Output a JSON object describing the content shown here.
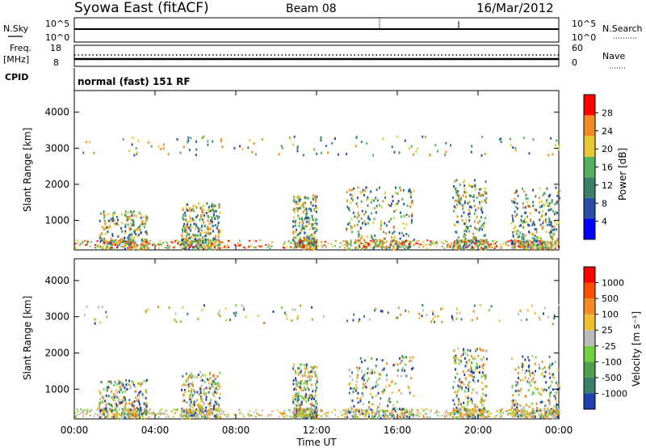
{
  "header": {
    "station": "Syowa East (fitACF)",
    "beam": "Beam 08",
    "date": "16/Mar/2012"
  },
  "top_panels": {
    "nsky_label": "N.Sky",
    "nsky_ticks": [
      "10^5",
      "10^0"
    ],
    "nsearch_label": "N.Search",
    "nsearch_ticks": [
      "10^5",
      "10^0"
    ],
    "freq_label": "Freq.",
    "freq_unit": "[MHz]",
    "freq_ticks": [
      "18",
      "8"
    ],
    "nave_label": "Nave",
    "nave_ticks": [
      "60",
      "0"
    ],
    "cpid_label": "CPID",
    "cpid_value": "normal (fast) 151 RF"
  },
  "chart_data": [
    {
      "type": "heatmap",
      "panel": "power",
      "ylabel": "Slant Range [km]",
      "ylim": [
        180,
        4600
      ],
      "yticks": [
        "4000",
        "3000",
        "2000",
        "1000"
      ],
      "xlabel": "Time UT",
      "xticks": [
        "00:00",
        "04:00",
        "08:00",
        "12:00",
        "16:00",
        "20:00",
        "00:00"
      ],
      "colorbar_label": "Power [dB]",
      "colorbar_ticks": [
        "28",
        "24",
        "20",
        "16",
        "12",
        "8",
        "4"
      ],
      "colors": [
        "#0000ff",
        "#2b4fa8",
        "#3a7f6a",
        "#55b060",
        "#e8c830",
        "#f08c20",
        "#ff0000"
      ]
    },
    {
      "type": "heatmap",
      "panel": "velocity",
      "ylabel": "Slant Range [km]",
      "ylim": [
        180,
        4600
      ],
      "yticks": [
        "4000",
        "3000",
        "2000",
        "1000"
      ],
      "xlabel": "Time UT",
      "xticks": [
        "00:00",
        "04:00",
        "08:00",
        "12:00",
        "16:00",
        "20:00",
        "00:00"
      ],
      "colorbar_label": "Velocity [m s⁻¹]",
      "colorbar_ticks": [
        "1000",
        "500",
        "100",
        "25",
        "-25",
        "-100",
        "-500",
        "-1000"
      ],
      "colors": [
        "#2040b0",
        "#3a7f6a",
        "#50a050",
        "#70d040",
        "#bbbbbb",
        "#f0c030",
        "#f08c20",
        "#ff5000",
        "#ff0000"
      ]
    }
  ]
}
